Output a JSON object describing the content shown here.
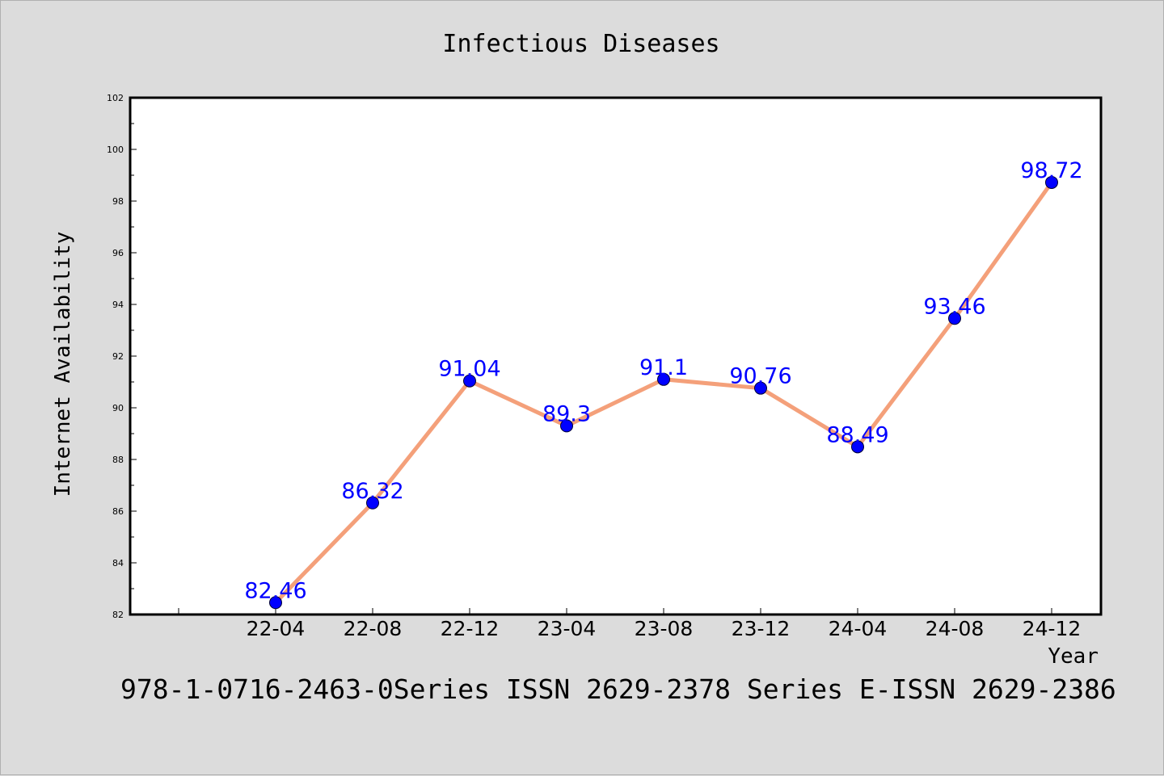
{
  "chart_data": {
    "type": "line",
    "title": "Infectious Diseases",
    "xlabel": "Year",
    "ylabel": "Internet Availability",
    "categories": [
      "22-04",
      "22-08",
      "22-12",
      "23-04",
      "23-08",
      "23-12",
      "24-04",
      "24-08",
      "24-12"
    ],
    "series": [
      {
        "values": [
          82.46,
          86.32,
          91.04,
          89.3,
          91.1,
          90.76,
          88.49,
          93.46,
          98.72
        ]
      }
    ],
    "ylim": [
      82,
      102
    ],
    "yticks": [
      82,
      84,
      86,
      88,
      90,
      92,
      94,
      96,
      98,
      100,
      102
    ],
    "data_labels": true,
    "grid": false,
    "colors": {
      "line": "#f4a07a",
      "marker": "#0000ff",
      "data_label": "#0000ff",
      "plot_background": "#ffffff",
      "figure_background": "#dcdcdc"
    }
  },
  "caption": "978-1-0716-2463-0Series ISSN 2629-2378 Series E-ISSN 2629-2386"
}
